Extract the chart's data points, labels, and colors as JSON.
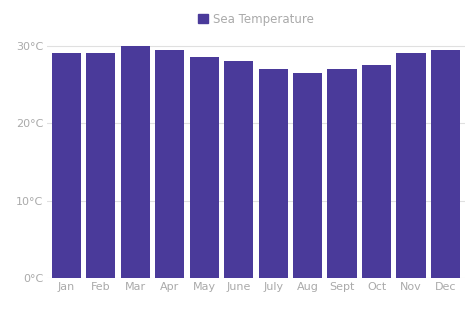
{
  "months": [
    "Jan",
    "Feb",
    "Mar",
    "Apr",
    "May",
    "June",
    "July",
    "Aug",
    "Sept",
    "Oct",
    "Nov",
    "Dec"
  ],
  "values": [
    29.0,
    29.0,
    30.0,
    29.5,
    28.5,
    28.0,
    27.0,
    26.5,
    27.0,
    27.5,
    29.0,
    29.5
  ],
  "bar_color": "#4a3a9a",
  "background_color": "#ffffff",
  "legend_label": "Sea Temperature",
  "legend_marker_color": "#4a3a9a",
  "yticks": [
    0,
    10,
    20,
    30
  ],
  "ytick_labels": [
    "0°C",
    "10°C",
    "20°C",
    "30°C"
  ],
  "ylim": [
    0,
    31.0
  ],
  "grid_color": "#e0e0e0",
  "text_color": "#aaaaaa",
  "legend_fontsize": 8.5,
  "tick_fontsize": 8.0
}
